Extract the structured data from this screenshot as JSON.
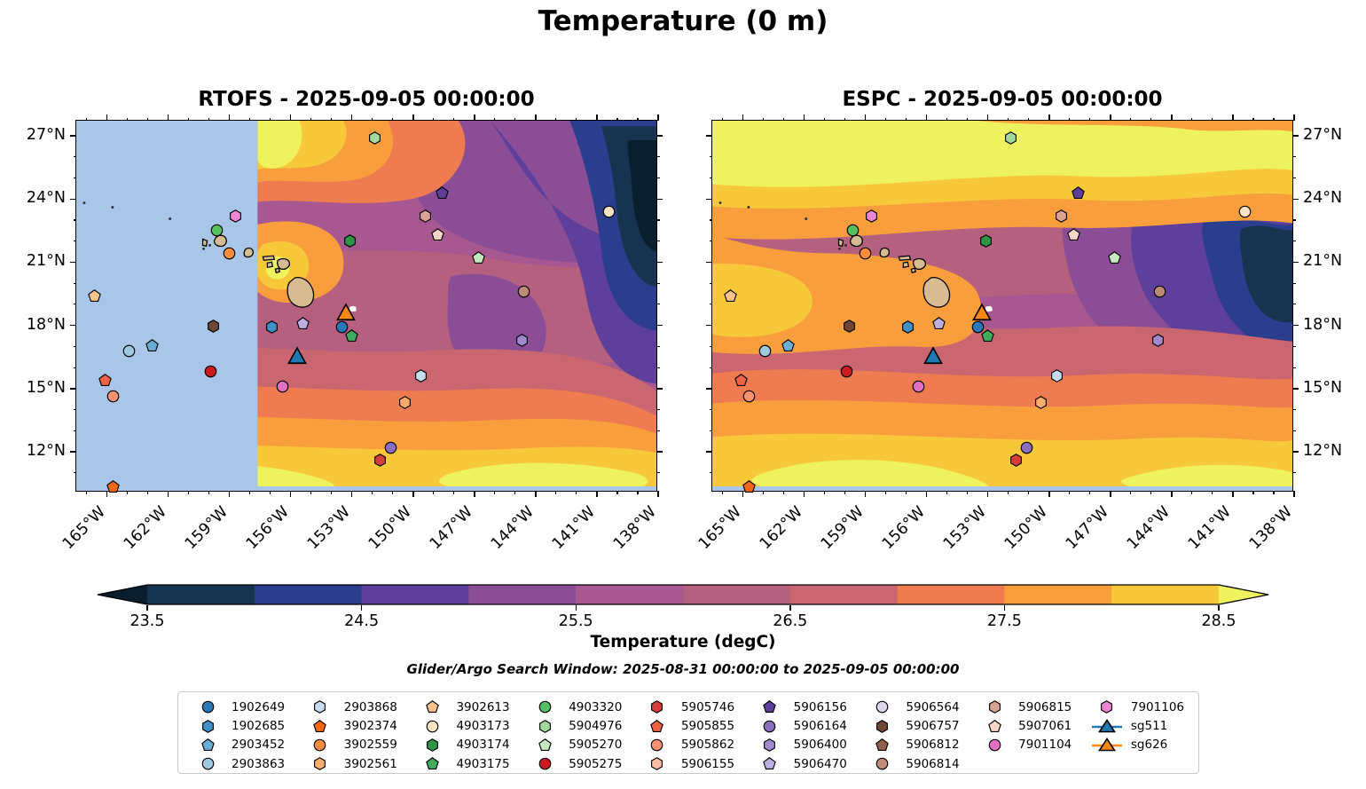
{
  "chart_data": {
    "type": "heatmap",
    "title": "Temperature (0 m)",
    "annotation": "Glider/Argo Search Window: 2025-08-31 00:00:00 to 2025-09-05 00:00:00",
    "subplots": [
      {
        "id": "rtofs",
        "model": "RTOFS",
        "title": "RTOFS - 2025-09-05 00:00:00",
        "valid_time": "2025-09-05 00:00:00",
        "masked_lon_w_range": [
          166.5,
          157.6
        ]
      },
      {
        "id": "espc",
        "model": "ESPC",
        "title": "ESPC - 2025-09-05 00:00:00",
        "valid_time": "2025-09-05 00:00:00"
      }
    ],
    "axes": {
      "lon_range_w": [
        166.5,
        138.0
      ],
      "lat_range_n": [
        10.06,
        27.72
      ],
      "lon_major_ticks_w": [
        165,
        162,
        159,
        156,
        153,
        150,
        147,
        144,
        141,
        138
      ],
      "lon_tick_labels": [
        "165°W",
        "162°W",
        "159°W",
        "156°W",
        "153°W",
        "150°W",
        "147°W",
        "144°W",
        "141°W",
        "138°W"
      ],
      "lat_major_ticks_n": [
        27,
        24,
        21,
        18,
        15,
        12
      ],
      "lat_tick_labels": [
        "27°N",
        "24°N",
        "21°N",
        "18°N",
        "15°N",
        "12°N"
      ],
      "minor_tick_step_deg": 1,
      "grid": false
    },
    "colorbar": {
      "label": "Temperature (degC)",
      "orientation": "horizontal",
      "tick_labels": [
        "23.5",
        "24.5",
        "25.5",
        "26.5",
        "27.5",
        "28.5"
      ],
      "tick_values": [
        23.5,
        24.5,
        25.5,
        26.5,
        27.5,
        28.5
      ],
      "value_range": [
        23.5,
        28.5
      ],
      "level_step_degc": 0.5,
      "under_color": "#0a1e2e",
      "over_color": "#eef25e",
      "level_colors": [
        "#16334f",
        "#2b3e8d",
        "#5e3f9c",
        "#8a4d96",
        "#a85890",
        "#b5607f",
        "#ca6670",
        "#ee7c50",
        "#f89e3d",
        "#f8c83b"
      ]
    },
    "platforms": [
      {
        "id": "1902649",
        "shape": "circle",
        "color": "#2878b8",
        "lon_w": 153.5,
        "lat_n": 17.9
      },
      {
        "id": "1902685",
        "shape": "hexagon",
        "color": "#4090c5",
        "lon_w": 156.9,
        "lat_n": 17.9
      },
      {
        "id": "2903452",
        "shape": "pentagon",
        "color": "#69acd5",
        "lon_w": 162.8,
        "lat_n": 17.05
      },
      {
        "id": "2903863",
        "shape": "circle",
        "color": "#9dcae1",
        "lon_w": 163.9,
        "lat_n": 16.8
      },
      {
        "id": "2903868",
        "shape": "hexagon",
        "color": "#c8dcef",
        "lon_w": 149.6,
        "lat_n": 15.6
      },
      {
        "id": "3902374",
        "shape": "pentagon",
        "color": "#f16a13",
        "lon_w": 164.7,
        "lat_n": 10.35
      },
      {
        "id": "3902559",
        "shape": "circle",
        "color": "#fd8c3c",
        "lon_w": 159.0,
        "lat_n": 21.4
      },
      {
        "id": "3902561",
        "shape": "hexagon",
        "color": "#fdae6b",
        "lon_w": 150.4,
        "lat_n": 14.35
      },
      {
        "id": "3902613",
        "shape": "pentagon",
        "color": "#fcc38b",
        "lon_w": 165.6,
        "lat_n": 19.4
      },
      {
        "id": "4903173",
        "shape": "circle",
        "color": "#fde2c4",
        "lon_w": 140.4,
        "lat_n": 23.4
      },
      {
        "id": "4903174",
        "shape": "hexagon",
        "color": "#2e9447",
        "lon_w": 153.1,
        "lat_n": 22.0
      },
      {
        "id": "4903175",
        "shape": "pentagon",
        "color": "#41ab5d",
        "lon_w": 153.0,
        "lat_n": 17.5
      },
      {
        "id": "4903320",
        "shape": "circle",
        "color": "#55c05f",
        "lon_w": 159.6,
        "lat_n": 22.5
      },
      {
        "id": "5904976",
        "shape": "hexagon",
        "color": "#a1d99b",
        "lon_w": 151.9,
        "lat_n": 26.9
      },
      {
        "id": "5905270",
        "shape": "pentagon",
        "color": "#c7e9c0",
        "lon_w": 146.8,
        "lat_n": 21.2
      },
      {
        "id": "5905275",
        "shape": "circle",
        "color": "#cb1b1e",
        "lon_w": 159.9,
        "lat_n": 15.8
      },
      {
        "id": "5905746",
        "shape": "hexagon",
        "color": "#d53e3b",
        "lon_w": 151.6,
        "lat_n": 11.6
      },
      {
        "id": "5905855",
        "shape": "pentagon",
        "color": "#ef6248",
        "lon_w": 165.1,
        "lat_n": 15.4
      },
      {
        "id": "5905862",
        "shape": "circle",
        "color": "#fc9272",
        "lon_w": 164.7,
        "lat_n": 14.65
      },
      {
        "id": "5906155",
        "shape": "hexagon",
        "color": "#fcbca4"
      },
      {
        "id": "5906156",
        "shape": "pentagon",
        "color": "#5f3d9a",
        "lon_w": 148.6,
        "lat_n": 24.3
      },
      {
        "id": "5906164",
        "shape": "circle",
        "color": "#8a6dbf",
        "lon_w": 151.1,
        "lat_n": 12.2
      },
      {
        "id": "5906400",
        "shape": "hexagon",
        "color": "#a289cf",
        "lon_w": 144.65,
        "lat_n": 17.3
      },
      {
        "id": "5906470",
        "shape": "pentagon",
        "color": "#bcaede",
        "lon_w": 155.4,
        "lat_n": 18.1
      },
      {
        "id": "5906564",
        "shape": "circle",
        "color": "#ded5ed"
      },
      {
        "id": "5906757",
        "shape": "hexagon",
        "color": "#6e4737",
        "lon_w": 159.8,
        "lat_n": 17.95
      },
      {
        "id": "5906812",
        "shape": "pentagon",
        "color": "#92604b"
      },
      {
        "id": "5906814",
        "shape": "circle",
        "color": "#bd8b77",
        "lon_w": 144.6,
        "lat_n": 19.6
      },
      {
        "id": "5906815",
        "shape": "hexagon",
        "color": "#d8a491",
        "lon_w": 149.4,
        "lat_n": 23.2
      },
      {
        "id": "5907061",
        "shape": "pentagon",
        "color": "#f9d6c9",
        "lon_w": 148.8,
        "lat_n": 22.3
      },
      {
        "id": "7901104",
        "shape": "circle",
        "color": "#e26fc4",
        "lon_w": 156.4,
        "lat_n": 15.1
      },
      {
        "id": "7901106",
        "shape": "hexagon",
        "color": "#ee87d3",
        "lon_w": 158.7,
        "lat_n": 23.2
      },
      {
        "id": "sg511",
        "shape": "triangle",
        "color": "#1f77b4",
        "lon_w": 155.7,
        "lat_n": 16.55,
        "glider": true
      },
      {
        "id": "sg626",
        "shape": "triangle",
        "color": "#ff8712",
        "lon_w": 153.3,
        "lat_n": 18.6,
        "glider": true
      }
    ],
    "extra_markers": [
      {
        "id": "glider-waypoint",
        "shape": "blob",
        "color": "#ffffff",
        "lon_w": 152.95,
        "lat_n": 18.75
      }
    ]
  },
  "map_colors": {
    "rtofs_mask": "#a9c6e8",
    "bottom_strip": "#a9c6e8",
    "land": "#d7bc91",
    "coastline": "#000000",
    "island_specks": "#333333"
  },
  "legend": {
    "columns": [
      [
        "1902649",
        "1902685",
        "2903452",
        "2903863"
      ],
      [
        "2903868",
        "3902374",
        "3902559",
        "3902561"
      ],
      [
        "3902613",
        "4903173",
        "4903174",
        "4903175"
      ],
      [
        "4903320",
        "5904976",
        "5905270",
        "5905275"
      ],
      [
        "5905746",
        "5905855",
        "5905862",
        "5906155"
      ],
      [
        "5906156",
        "5906164",
        "5906400",
        "5906470"
      ],
      [
        "5906564",
        "5906757",
        "5906812",
        "5906814"
      ],
      [
        "5906815",
        "5907061",
        "7901104"
      ],
      [
        "7901106",
        "sg511",
        "sg626"
      ]
    ]
  }
}
